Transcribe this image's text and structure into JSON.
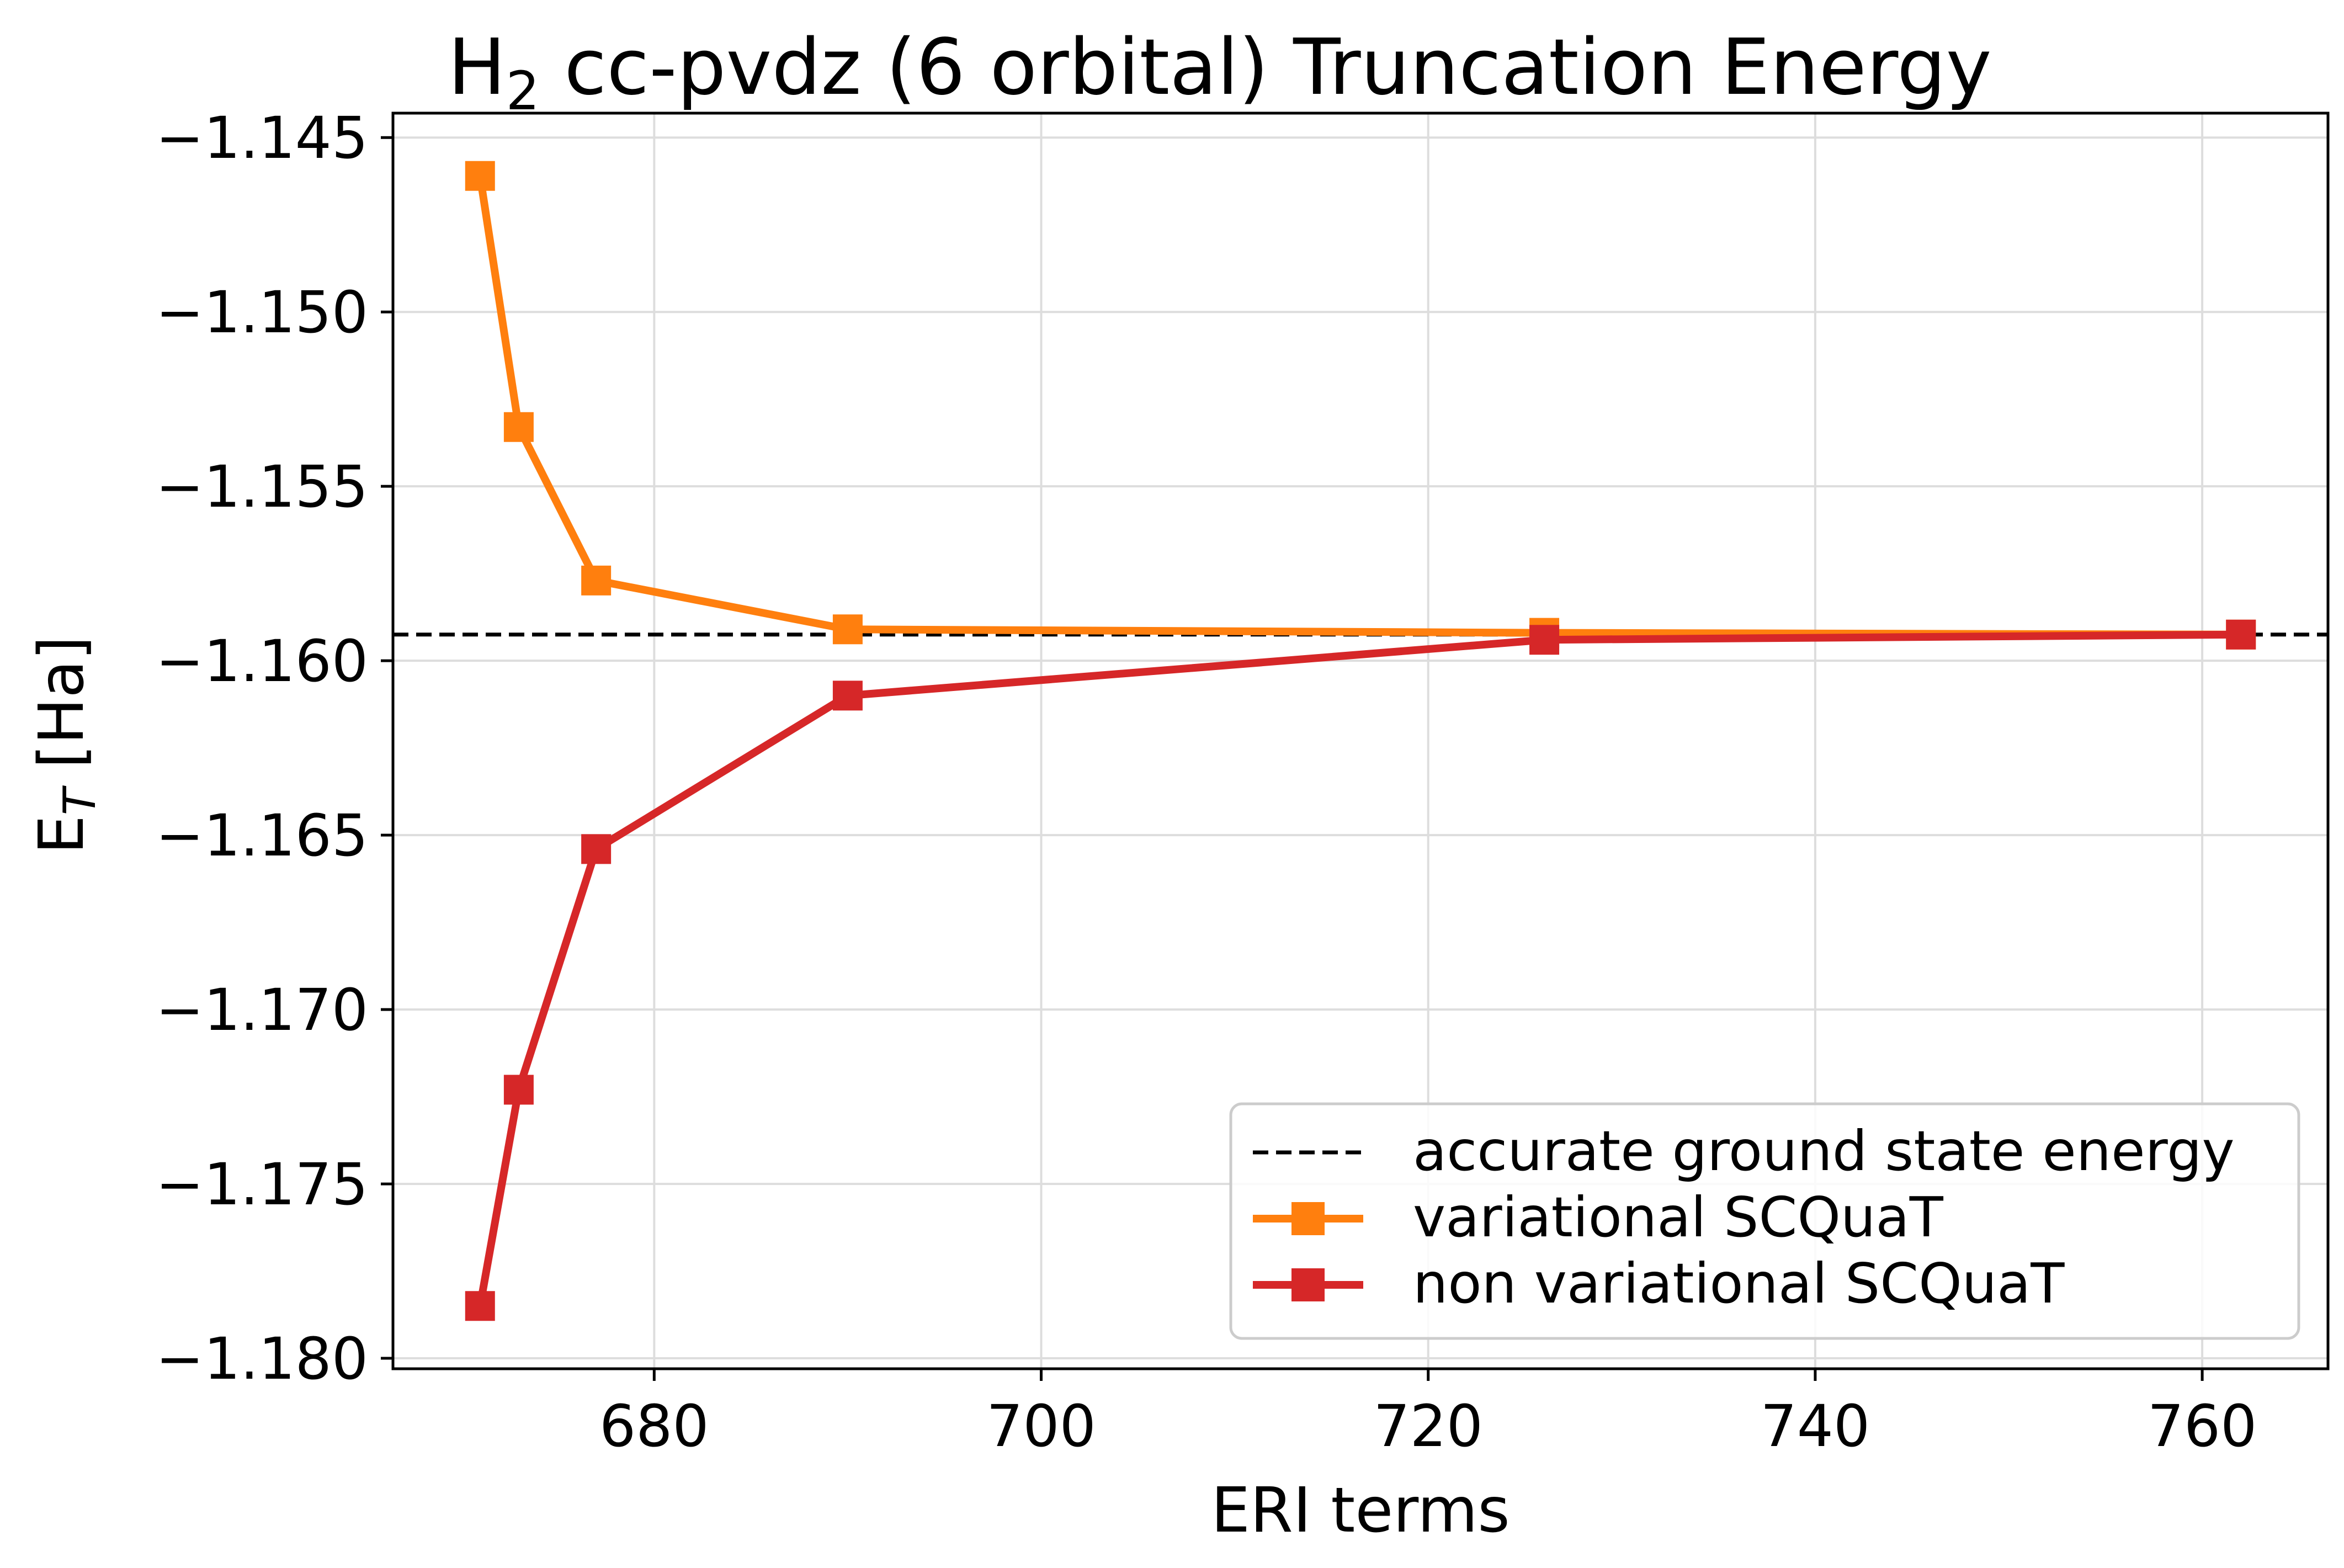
{
  "chart_data": {
    "type": "line",
    "title_main": "H",
    "title_sub": "2",
    "title_rest": " cc-pvdz (6 orbital) Truncation Energy",
    "xlabel": "ERI terms",
    "ylabel_main": "E",
    "ylabel_sub": "T",
    "ylabel_rest": " [Ha]",
    "xlim": [
      666.5,
      766.5
    ],
    "ylim": [
      -1.1803,
      -1.1443
    ],
    "xticks": [
      680,
      700,
      720,
      740,
      760
    ],
    "xtick_labels": [
      "680",
      "700",
      "720",
      "740",
      "760"
    ],
    "yticks": [
      -1.145,
      -1.15,
      -1.155,
      -1.16,
      -1.165,
      -1.17,
      -1.175,
      -1.18
    ],
    "ytick_labels": [
      "−1.145",
      "−1.150",
      "−1.155",
      "−1.160",
      "−1.165",
      "−1.170",
      "−1.175",
      "−1.180"
    ],
    "grid": true,
    "legend_position": "lower-right",
    "reference_line": {
      "name": "accurate ground state energy",
      "y": -1.15925,
      "color": "#000000",
      "style": "dashed"
    },
    "series": [
      {
        "name": "variational SCQuaT",
        "color": "#ff7f0e",
        "marker": "square",
        "x": [
          671,
          673,
          677,
          690,
          726,
          762
        ],
        "y": [
          -1.1461,
          -1.1533,
          -1.1577,
          -1.1591,
          -1.1592,
          -1.15925
        ]
      },
      {
        "name": "non variational SCQuaT",
        "color": "#d62728",
        "marker": "square",
        "x": [
          671,
          673,
          677,
          690,
          726,
          762
        ],
        "y": [
          -1.1785,
          -1.1723,
          -1.1654,
          -1.161,
          -1.1594,
          -1.15925
        ]
      }
    ]
  }
}
